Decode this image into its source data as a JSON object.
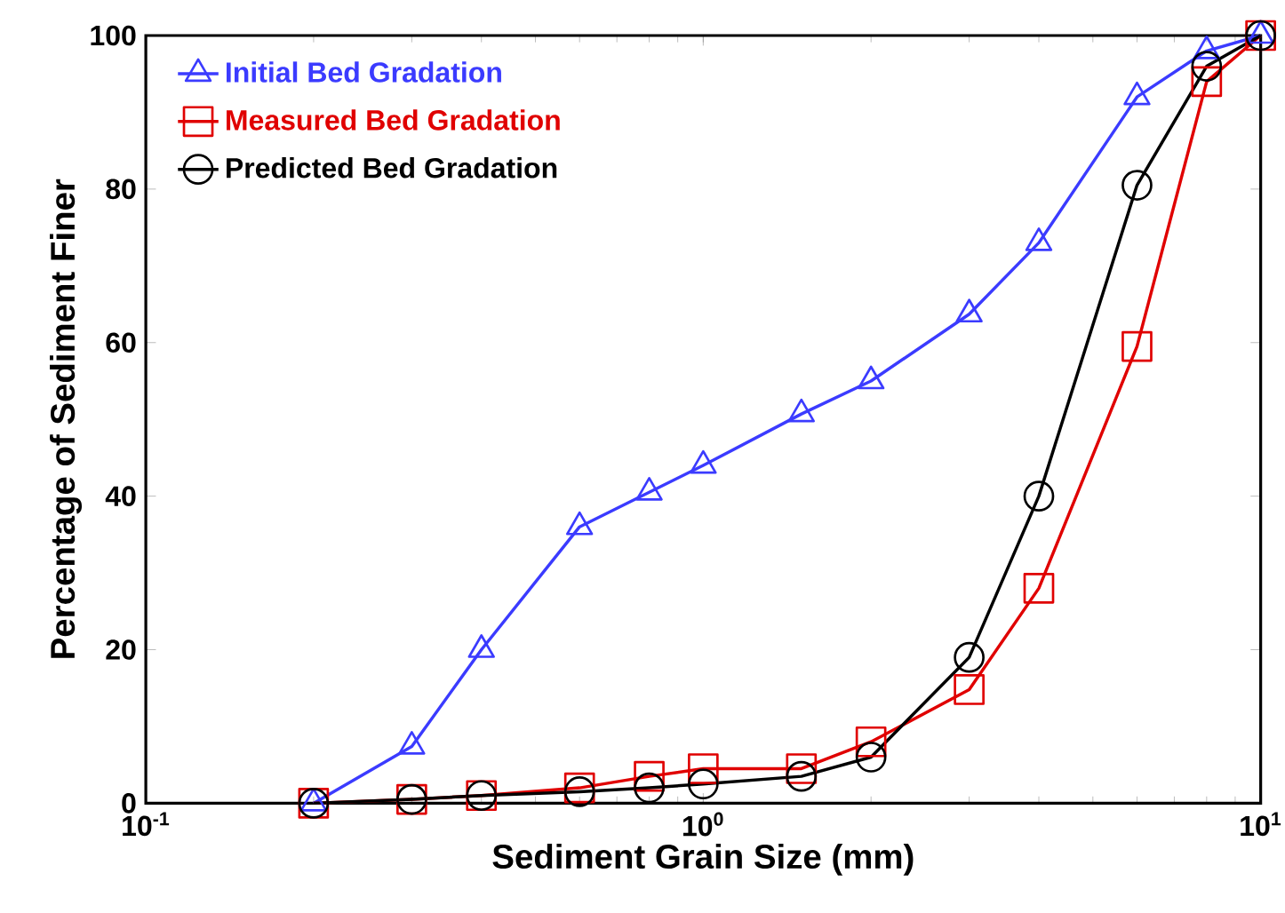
{
  "chart_data": {
    "type": "line",
    "xlabel": "Sediment Grain Size (mm)",
    "ylabel": "Percentage of Sediment Finer",
    "log": "x",
    "xlim": [
      0.1,
      10
    ],
    "ylim": [
      0,
      100
    ],
    "xticks": [
      {
        "value": 0.1,
        "label": "10$^{-1}$"
      },
      {
        "value": 1,
        "label": "10$^{0}$"
      },
      {
        "value": 10,
        "label": "10$^{1}$"
      }
    ],
    "yticks": [
      0,
      20,
      40,
      60,
      80,
      100
    ],
    "x": [
      0.2,
      0.3,
      0.4,
      0.6,
      0.8,
      1.0,
      1.5,
      2,
      3,
      4,
      6,
      8,
      10
    ],
    "legend": "top left",
    "grid": false,
    "line_style": "solid",
    "series": [
      {
        "name": "Initial Bed Gradation",
        "color": "#3b3bff",
        "marker": "triangle",
        "values": [
          0,
          7.4,
          20,
          36,
          40.5,
          44,
          50.7,
          55,
          63.7,
          73,
          92,
          98,
          100
        ]
      },
      {
        "name": "Measured Bed Gradation",
        "color": "#e00000",
        "marker": "square",
        "values": [
          0,
          0.5,
          1,
          2,
          3.5,
          4.5,
          4.5,
          8,
          14.8,
          28,
          59.5,
          94,
          100
        ]
      },
      {
        "name": "Predicted Bed Gradation",
        "color": "#000000",
        "marker": "circle",
        "values": [
          0,
          0.5,
          1,
          1.5,
          2,
          2.5,
          3.5,
          6,
          19,
          40,
          80.5,
          96,
          100
        ]
      }
    ]
  }
}
